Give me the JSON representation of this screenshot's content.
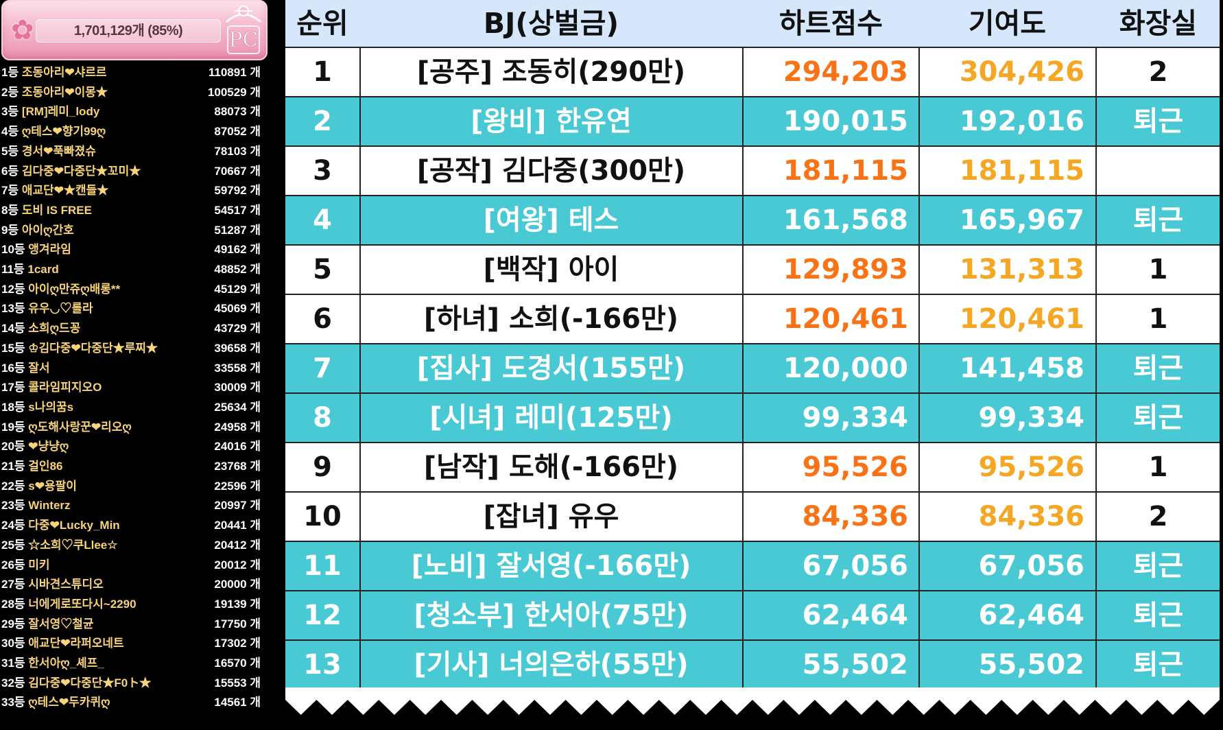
{
  "goal_box": {
    "progress_text": "1,701,129개 (85%)",
    "progress_fraction": 0.85,
    "logo_text": "PC",
    "accent_color": "#f5b7cb"
  },
  "ranking": [
    {
      "rank": "1등",
      "name": "조동아리❤샤르르",
      "count": "110891 개"
    },
    {
      "rank": "2등",
      "name": "조동아리❤이몽★",
      "count": "100529 개"
    },
    {
      "rank": "3등",
      "name": "[RM]레미_lody",
      "count": "88073 개"
    },
    {
      "rank": "4등",
      "name": "ღ테스❤향기99ღ",
      "count": "87052 개"
    },
    {
      "rank": "5등",
      "name": "경서❤푹빠졌슈",
      "count": "78103 개"
    },
    {
      "rank": "6등",
      "name": "김다중❤다중단★꼬미★",
      "count": "70667 개"
    },
    {
      "rank": "7등",
      "name": "애교단❤★캔들★",
      "count": "59792 개"
    },
    {
      "rank": "8등",
      "name": "도비    IS     FREE",
      "count": "54517 개"
    },
    {
      "rank": "9등",
      "name": "아이ღ간호",
      "count": "51287 개"
    },
    {
      "rank": "10등",
      "name": "앵겨라임",
      "count": "49162 개"
    },
    {
      "rank": "11등",
      "name": "1card",
      "count": "48852 개"
    },
    {
      "rank": "12등",
      "name": "아이ღ만쥬ღ배롱**",
      "count": "45129 개"
    },
    {
      "rank": "13등",
      "name": "유우◡♡롤라",
      "count": "45069 개"
    },
    {
      "rank": "14등",
      "name": "소희ღ드꽁",
      "count": "43729 개"
    },
    {
      "rank": "15등",
      "name": "♔김다중❤다중단★루찌★",
      "count": "39658 개"
    },
    {
      "rank": "16등",
      "name": "잘서",
      "count": "33558 개"
    },
    {
      "rank": "17등",
      "name": "콜라임피지오O",
      "count": "30009 개"
    },
    {
      "rank": "18등",
      "name": "s나의꿈s",
      "count": "25634 개"
    },
    {
      "rank": "19등",
      "name": "ღ도해사랑꾼❤리오ღ",
      "count": "24958 개"
    },
    {
      "rank": "20등",
      "name": "❤냥냥ღ",
      "count": "24016 개"
    },
    {
      "rank": "21등",
      "name": "걸인86",
      "count": "23768 개"
    },
    {
      "rank": "22등",
      "name": "s❤용팔이",
      "count": "22596 개"
    },
    {
      "rank": "23등",
      "name": "Winterz",
      "count": "20997 개"
    },
    {
      "rank": "24등",
      "name": "다중❤Lucky_Min",
      "count": "20441 개"
    },
    {
      "rank": "25등",
      "name": "☆소희♡쿠Llee☆",
      "count": "20412 개"
    },
    {
      "rank": "26등",
      "name": "미키",
      "count": "20012 개"
    },
    {
      "rank": "27등",
      "name": "시바견스튜디오",
      "count": "20000 개"
    },
    {
      "rank": "28등",
      "name": "너에게로또다시~2290",
      "count": "19139 개"
    },
    {
      "rank": "29등",
      "name": "잘서영♡철균",
      "count": "17750 개"
    },
    {
      "rank": "30등",
      "name": "애교단❤라퍼오네트",
      "count": "17302 개"
    },
    {
      "rank": "31등",
      "name": "한서아ღ_셰프_",
      "count": "16570 개"
    },
    {
      "rank": "32등",
      "name": "김다중❤다중단★F0ト★",
      "count": "15553 개"
    },
    {
      "rank": "33등",
      "name": "ღ테스❤두카퀴ღ",
      "count": "14561 개"
    }
  ],
  "table": {
    "headers": {
      "rank": "순위",
      "name": "BJ(상벌금)",
      "heart": "하트점수",
      "contribution": "기여도",
      "restroom": "화장실"
    },
    "rows": [
      {
        "rank": "1",
        "name": "[공주] 조동히(290만)",
        "heart": "294,203",
        "contribution": "304,426",
        "restroom": "2",
        "style": "white"
      },
      {
        "rank": "2",
        "name": "[왕비] 한유연",
        "heart": "190,015",
        "contribution": "192,016",
        "restroom": "퇴근",
        "style": "teal"
      },
      {
        "rank": "3",
        "name": "[공작] 김다중(300만)",
        "heart": "181,115",
        "contribution": "181,115",
        "restroom": "",
        "style": "white"
      },
      {
        "rank": "4",
        "name": "[여왕] 테스",
        "heart": "161,568",
        "contribution": "165,967",
        "restroom": "퇴근",
        "style": "teal"
      },
      {
        "rank": "5",
        "name": "[백작] 아이",
        "heart": "129,893",
        "contribution": "131,313",
        "restroom": "1",
        "style": "white"
      },
      {
        "rank": "6",
        "name": "[하녀] 소희(-166만)",
        "heart": "120,461",
        "contribution": "120,461",
        "restroom": "1",
        "style": "white"
      },
      {
        "rank": "7",
        "name": "[집사] 도경서(155만)",
        "heart": "120,000",
        "contribution": "141,458",
        "restroom": "퇴근",
        "style": "teal"
      },
      {
        "rank": "8",
        "name": "[시녀] 레미(125만)",
        "heart": "99,334",
        "contribution": "99,334",
        "restroom": "퇴근",
        "style": "teal"
      },
      {
        "rank": "9",
        "name": "[남작] 도해(-166만)",
        "heart": "95,526",
        "contribution": "95,526",
        "restroom": "1",
        "style": "white"
      },
      {
        "rank": "10",
        "name": "[잡녀] 유우",
        "heart": "84,336",
        "contribution": "84,336",
        "restroom": "2",
        "style": "white"
      },
      {
        "rank": "11",
        "name": "[노비] 잘서영(-166만)",
        "heart": "67,056",
        "contribution": "67,056",
        "restroom": "퇴근",
        "style": "teal"
      },
      {
        "rank": "12",
        "name": "[청소부] 한서아(75만)",
        "heart": "62,464",
        "contribution": "62,464",
        "restroom": "퇴근",
        "style": "teal"
      },
      {
        "rank": "13",
        "name": "[기사] 너의은하(55만)",
        "heart": "55,502",
        "contribution": "55,502",
        "restroom": "퇴근",
        "style": "teal"
      }
    ]
  },
  "colors": {
    "header_bg": "#d6e7fb",
    "teal_row": "#49c9d4",
    "heart_orange": "#f97316",
    "contrib_orange": "#f5a623",
    "list_name_yellow": "#f7d37a"
  }
}
